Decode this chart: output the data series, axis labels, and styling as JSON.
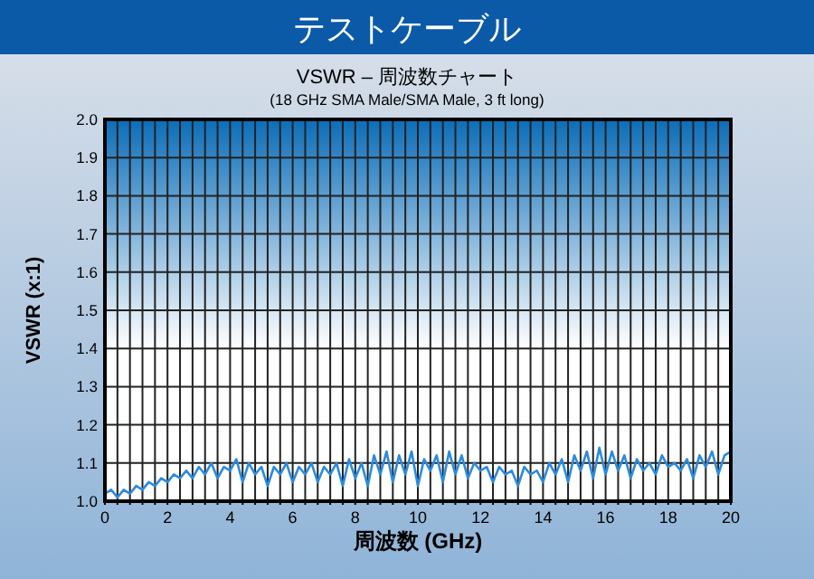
{
  "chart_data": {
    "type": "line",
    "title": "テストケーブル",
    "subtitle": "VSWR – 周波数チャート",
    "annotations": [
      "(18 GHz SMA Male/SMA Male, 3 ft long)"
    ],
    "xlabel": "周波数 (GHz)",
    "ylabel": "VSWR (x:1)",
    "x": [
      0,
      0.2,
      0.4,
      0.6,
      0.8,
      1,
      1.2,
      1.4,
      1.6,
      1.8,
      2,
      2.2,
      2.4,
      2.6,
      2.8,
      3,
      3.2,
      3.4,
      3.6,
      3.8,
      4,
      4.2,
      4.4,
      4.6,
      4.8,
      5,
      5.2,
      5.4,
      5.6,
      5.8,
      6,
      6.2,
      6.4,
      6.6,
      6.8,
      7,
      7.2,
      7.4,
      7.6,
      7.8,
      8,
      8.2,
      8.4,
      8.6,
      8.8,
      9,
      9.2,
      9.4,
      9.6,
      9.8,
      10,
      10.2,
      10.4,
      10.6,
      10.8,
      11,
      11.2,
      11.4,
      11.6,
      11.8,
      12,
      12.2,
      12.4,
      12.6,
      12.8,
      13,
      13.2,
      13.4,
      13.6,
      13.8,
      14,
      14.2,
      14.4,
      14.6,
      14.8,
      15,
      15.2,
      15.4,
      15.6,
      15.8,
      16,
      16.2,
      16.4,
      16.6,
      16.8,
      17,
      17.2,
      17.4,
      17.6,
      17.8,
      18,
      18.2,
      18.4,
      18.6,
      18.8,
      19,
      19.2,
      19.4,
      19.6,
      19.8,
      20
    ],
    "series": [
      {
        "color": "#2a8be0",
        "values": [
          1.02,
          1.03,
          1.01,
          1.03,
          1.02,
          1.04,
          1.03,
          1.05,
          1.04,
          1.06,
          1.05,
          1.07,
          1.06,
          1.08,
          1.06,
          1.09,
          1.07,
          1.1,
          1.06,
          1.09,
          1.08,
          1.11,
          1.05,
          1.1,
          1.07,
          1.09,
          1.04,
          1.09,
          1.07,
          1.1,
          1.05,
          1.09,
          1.07,
          1.1,
          1.05,
          1.09,
          1.07,
          1.1,
          1.04,
          1.11,
          1.06,
          1.1,
          1.04,
          1.12,
          1.07,
          1.13,
          1.05,
          1.12,
          1.07,
          1.13,
          1.04,
          1.11,
          1.08,
          1.12,
          1.05,
          1.13,
          1.07,
          1.12,
          1.06,
          1.1,
          1.08,
          1.09,
          1.05,
          1.09,
          1.07,
          1.08,
          1.04,
          1.09,
          1.07,
          1.08,
          1.05,
          1.1,
          1.07,
          1.11,
          1.05,
          1.12,
          1.08,
          1.13,
          1.06,
          1.14,
          1.07,
          1.13,
          1.08,
          1.12,
          1.06,
          1.11,
          1.08,
          1.1,
          1.07,
          1.12,
          1.09,
          1.1,
          1.08,
          1.11,
          1.06,
          1.12,
          1.09,
          1.13,
          1.07,
          1.12,
          1.13
        ]
      }
    ],
    "xlim": [
      0,
      20
    ],
    "ylim": [
      1.0,
      2.0
    ],
    "xticks": [
      0,
      {
        "value": 0.4,
        "label": null
      },
      {
        "value": 0.8,
        "label": null
      },
      {
        "value": 1.2,
        "label": null
      },
      {
        "value": 1.6,
        "label": null
      },
      2,
      {
        "value": 2.4,
        "label": null
      },
      {
        "value": 2.8,
        "label": null
      },
      {
        "value": 3.2,
        "label": null
      },
      {
        "value": 3.6,
        "label": null
      },
      4,
      {
        "value": 4.4,
        "label": null
      },
      {
        "value": 4.8,
        "label": null
      },
      {
        "value": 5.2,
        "label": null
      },
      {
        "value": 5.6,
        "label": null
      },
      6,
      {
        "value": 6.4,
        "label": null
      },
      {
        "value": 6.8,
        "label": null
      },
      {
        "value": 7.2,
        "label": null
      },
      {
        "value": 7.6,
        "label": null
      },
      8,
      {
        "value": 8.4,
        "label": null
      },
      {
        "value": 8.8,
        "label": null
      },
      {
        "value": 9.2,
        "label": null
      },
      {
        "value": 9.6,
        "label": null
      },
      10,
      {
        "value": 10.4,
        "label": null
      },
      {
        "value": 10.8,
        "label": null
      },
      {
        "value": 11.2,
        "label": null
      },
      {
        "value": 11.6,
        "label": null
      },
      12,
      {
        "value": 12.4,
        "label": null
      },
      {
        "value": 12.8,
        "label": null
      },
      {
        "value": 13.2,
        "label": null
      },
      {
        "value": 13.6,
        "label": null
      },
      14,
      {
        "value": 14.4,
        "label": null
      },
      {
        "value": 14.8,
        "label": null
      },
      {
        "value": 15.2,
        "label": null
      },
      {
        "value": 15.6,
        "label": null
      },
      16,
      {
        "value": 16.4,
        "label": null
      },
      {
        "value": 16.8,
        "label": null
      },
      {
        "value": 17.2,
        "label": null
      },
      {
        "value": 17.6,
        "label": null
      },
      18,
      {
        "value": 18.4,
        "label": null
      },
      {
        "value": 18.8,
        "label": null
      },
      {
        "value": 19.2,
        "label": null
      },
      {
        "value": 19.6,
        "label": null
      },
      20
    ],
    "yticks": [
      {
        "value": 1.0,
        "label": "1.0"
      },
      1.1,
      1.2,
      1.3,
      1.4,
      1.5,
      1.6,
      1.7,
      1.8,
      1.9,
      {
        "value": 2.0,
        "label": "2.0"
      }
    ],
    "grid": true,
    "marker": "none",
    "line_style": "solid"
  }
}
